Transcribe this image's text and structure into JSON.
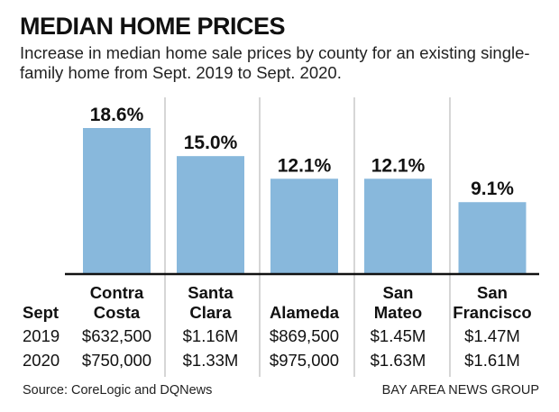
{
  "title": "MEDIAN HOME PRICES",
  "subtitle": "Increase in median home sale prices by county for an existing single-family home from Sept. 2019 to Sept. 2020.",
  "chart_data": {
    "type": "bar",
    "categories": [
      "Contra Costa",
      "Santa Clara",
      "Alameda",
      "San Mateo",
      "San Francisco"
    ],
    "values": [
      18.6,
      15.0,
      12.1,
      12.1,
      9.1
    ],
    "data_labels": [
      "18.6%",
      "15.0%",
      "12.1%",
      "12.1%",
      "9.1%"
    ],
    "unit": "%",
    "ylim": [
      0,
      18.6
    ],
    "grid": false,
    "bar_color": "#88b8dc"
  },
  "table": {
    "header_label": "Sept",
    "headers": [
      [
        "Contra",
        "Costa"
      ],
      [
        "Santa",
        "Clara"
      ],
      [
        "",
        "Alameda"
      ],
      [
        "San",
        "Mateo"
      ],
      [
        "San",
        "Francisco"
      ]
    ],
    "rows": [
      {
        "year": "2019",
        "values": [
          "$632,500",
          "$1.16M",
          "$869,500",
          "$1.45M",
          "$1.47M"
        ]
      },
      {
        "year": "2020",
        "values": [
          "$750,000",
          "$1.33M",
          "$975,000",
          "$1.63M",
          "$1.61M"
        ]
      }
    ]
  },
  "source": "Source: CoreLogic and DQNews",
  "credit": "BAY AREA NEWS GROUP"
}
